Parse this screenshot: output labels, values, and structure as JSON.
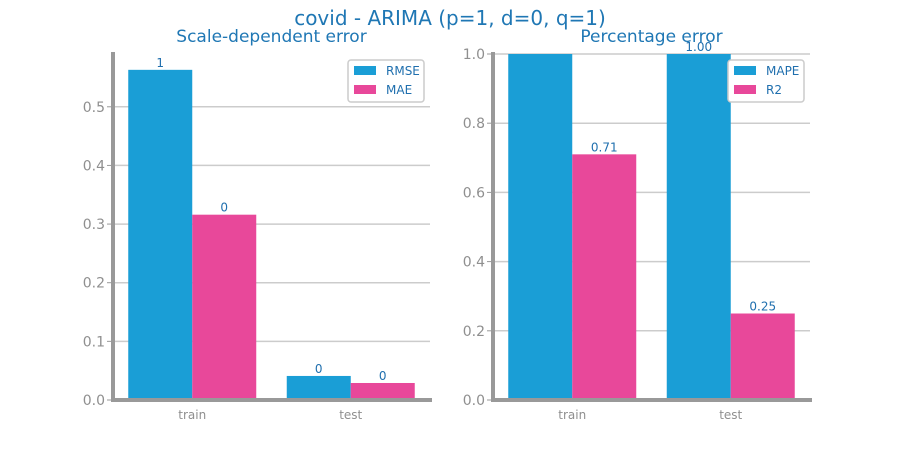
{
  "figure_title": "covid - ARIMA (p=1, d=0, q=1)",
  "colors": {
    "series_a": "#1a9ed6",
    "series_b": "#e8489a",
    "text": "#1f77b4",
    "axis": "#999999",
    "grid": "#cccccc",
    "tick_text": "#8f8f8f"
  },
  "chart_data": [
    {
      "type": "bar",
      "title": "Scale-dependent error",
      "categories": [
        "train",
        "test"
      ],
      "series": [
        {
          "name": "RMSE",
          "values": [
            0.563,
            0.041
          ],
          "labels": [
            "1",
            "0"
          ]
        },
        {
          "name": "MAE",
          "values": [
            0.316,
            0.029
          ],
          "labels": [
            "0",
            "0"
          ]
        }
      ],
      "ylim": [
        0,
        0.59
      ],
      "yticks": [
        0.0,
        0.1,
        0.2,
        0.3,
        0.4,
        0.5
      ],
      "ytick_labels": [
        "0.0",
        "0.1",
        "0.2",
        "0.3",
        "0.4",
        "0.5"
      ],
      "grid": true,
      "legend": "top-right"
    },
    {
      "type": "bar",
      "title": "Percentage error",
      "categories": [
        "train",
        "test"
      ],
      "series": [
        {
          "name": "MAPE",
          "values": [
            1.0,
            1.0
          ],
          "labels": [
            "",
            "1.00"
          ]
        },
        {
          "name": "R2",
          "values": [
            0.71,
            0.25
          ],
          "labels": [
            "0.71",
            "0.25"
          ]
        }
      ],
      "ylim": [
        0,
        1.0
      ],
      "yticks": [
        0.0,
        0.2,
        0.4,
        0.6,
        0.8,
        1.0
      ],
      "ytick_labels": [
        "0.0",
        "0.2",
        "0.4",
        "0.6",
        "0.8",
        "1.0"
      ],
      "grid": true,
      "legend": "top-right"
    }
  ]
}
